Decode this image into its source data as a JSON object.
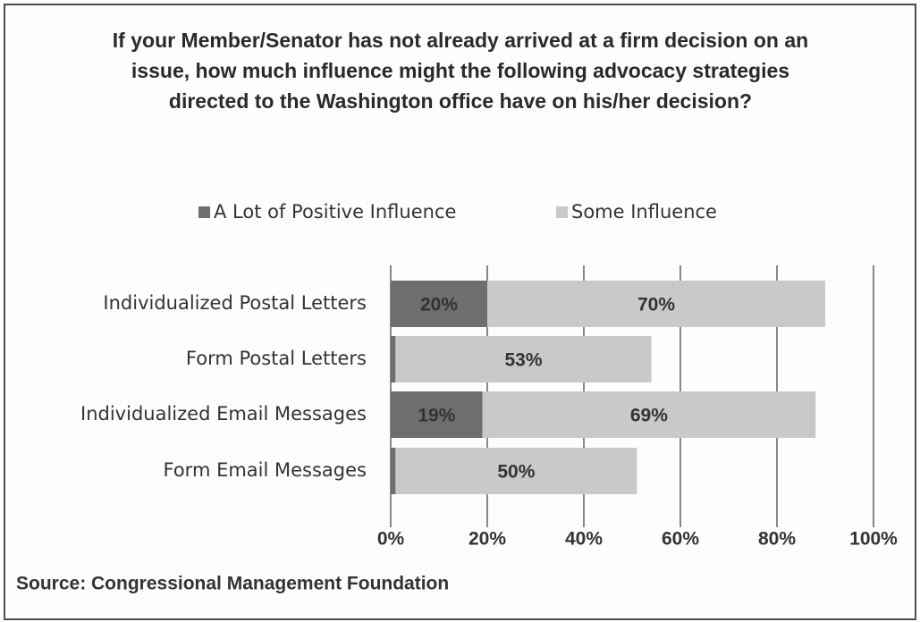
{
  "chart_data": {
    "type": "stacked_barh",
    "title": "If your Member/Senator has not already arrived at a firm decision on an issue, how much influence might the following advocacy strategies directed to the Washington office have on his/her decision?",
    "source": "Source: Congressional Management Foundation",
    "categories": [
      "Individualized Postal Letters",
      "Form Postal Letters",
      "Individualized Email Messages",
      "Form Email Messages"
    ],
    "series": [
      {
        "name": "A Lot of Positive Influence",
        "color": "#6e6e6e",
        "values": [
          20,
          1,
          19,
          1
        ],
        "value_labels": [
          "20%",
          "1%",
          "19%",
          "1%"
        ]
      },
      {
        "name": "Some Influence",
        "color": "#c9c9c9",
        "values": [
          70,
          53,
          69,
          50
        ],
        "value_labels": [
          "70%",
          "53%",
          "69%",
          "50%"
        ]
      }
    ],
    "xlim": [
      0,
      100
    ],
    "xticks": [
      {
        "value": 0,
        "label": "0%"
      },
      {
        "value": 20,
        "label": "20%"
      },
      {
        "value": 40,
        "label": "40%"
      },
      {
        "value": 60,
        "label": "60%"
      },
      {
        "value": 80,
        "label": "80%"
      },
      {
        "value": 100,
        "label": "100%"
      }
    ],
    "grid": true,
    "legend": "top"
  }
}
